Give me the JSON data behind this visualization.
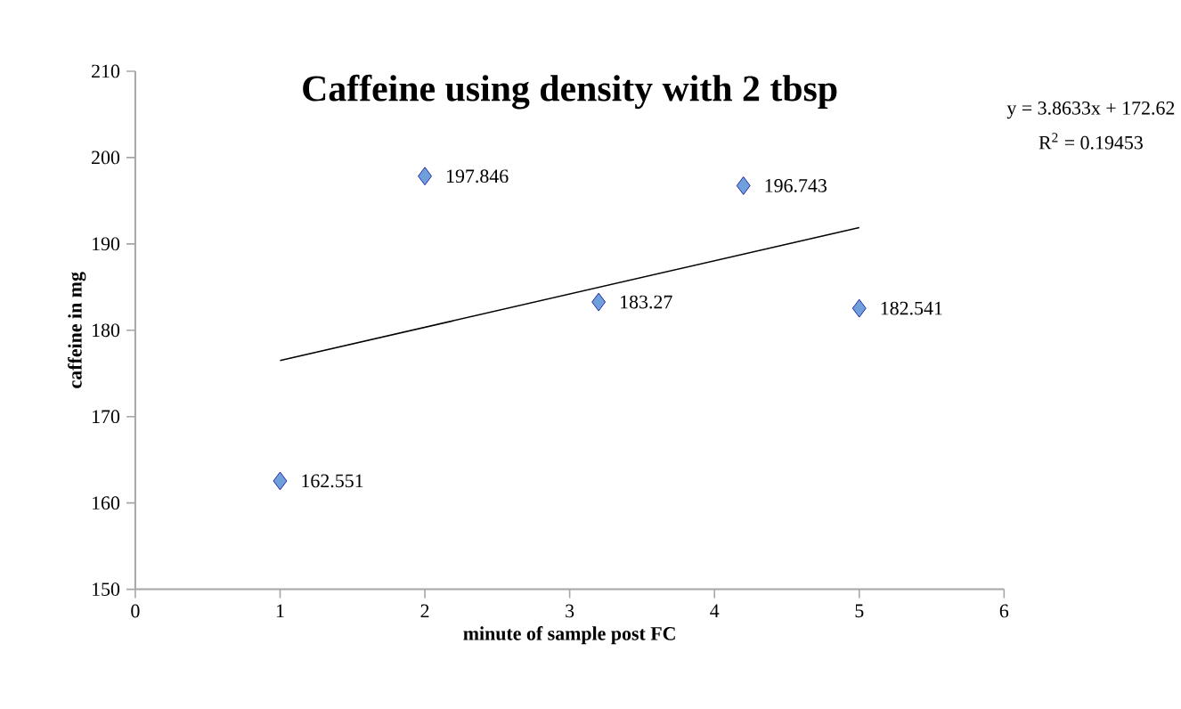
{
  "chart_data": {
    "type": "scatter",
    "title": "Caffeine using density with 2 tbsp",
    "xlabel": "minute of sample post FC",
    "ylabel": "caffeine in mg",
    "xlim": [
      0,
      6
    ],
    "xticks": [
      0,
      1,
      2,
      3,
      4,
      5,
      6
    ],
    "ylim": [
      150,
      210
    ],
    "yticks": [
      150,
      160,
      170,
      180,
      190,
      200,
      210
    ],
    "series": [
      {
        "color": "#6fa0dc",
        "marker": "diamond",
        "data_labels": true,
        "x": [
          1,
          2,
          3.2,
          4.2,
          5
        ],
        "values": [
          162.551,
          197.846,
          183.27,
          196.743,
          182.541
        ]
      },
      {
        "type": "line",
        "color": "#000000",
        "marker": "none",
        "line_style": "solid",
        "x": [
          1,
          5
        ],
        "values": [
          176.5,
          191.9
        ]
      }
    ],
    "annotations": [
      "y = 3.8633x + 172.62",
      "R$^{2}$ = 0.19453"
    ],
    "grid": false
  }
}
